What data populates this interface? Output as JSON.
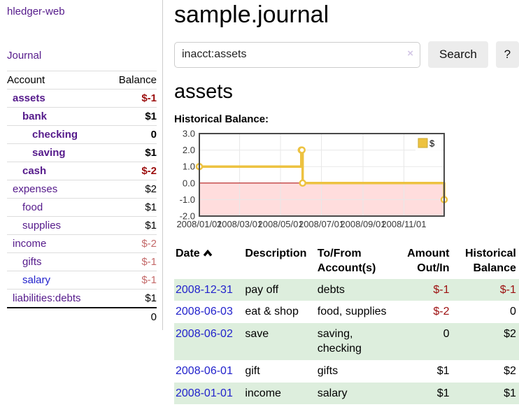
{
  "app": {
    "brand": "hledger-web",
    "nav": {
      "journal": "Journal"
    }
  },
  "sidebar": {
    "header": {
      "account": "Account",
      "balance": "Balance"
    },
    "accounts": [
      {
        "name": "assets",
        "balance": "$-1",
        "indent": 1,
        "bold": true,
        "name_color": "purple",
        "balance_class": "neg-strong"
      },
      {
        "name": "bank",
        "balance": "$1",
        "indent": 2,
        "bold": true,
        "name_color": "purple",
        "balance_class": ""
      },
      {
        "name": "checking",
        "balance": "0",
        "indent": 3,
        "bold": true,
        "name_color": "purple",
        "balance_class": ""
      },
      {
        "name": "saving",
        "balance": "$1",
        "indent": 3,
        "bold": true,
        "name_color": "purple",
        "balance_class": ""
      },
      {
        "name": "cash",
        "balance": "$-2",
        "indent": 2,
        "bold": true,
        "name_color": "purple",
        "balance_class": "neg-strong"
      },
      {
        "name": "expenses",
        "balance": "$2",
        "indent": 1,
        "bold": false,
        "name_color": "purple",
        "balance_class": ""
      },
      {
        "name": "food",
        "balance": "$1",
        "indent": 2,
        "bold": false,
        "name_color": "purple",
        "balance_class": ""
      },
      {
        "name": "supplies",
        "balance": "$1",
        "indent": 2,
        "bold": false,
        "name_color": "purple",
        "balance_class": ""
      },
      {
        "name": "income",
        "balance": "$-2",
        "indent": 1,
        "bold": false,
        "name_color": "purple",
        "balance_class": "neg-muted"
      },
      {
        "name": "gifts",
        "balance": "$-1",
        "indent": 2,
        "bold": false,
        "name_color": "purple",
        "balance_class": "neg-muted"
      },
      {
        "name": "salary",
        "balance": "$-1",
        "indent": 2,
        "bold": false,
        "name_color": "blue",
        "balance_class": "neg-muted"
      },
      {
        "name": "liabilities:debts",
        "balance": "$1",
        "indent": 1,
        "bold": false,
        "name_color": "purple",
        "balance_class": ""
      }
    ],
    "total": "0"
  },
  "main": {
    "title": "sample.journal",
    "search": {
      "value": "inacct:assets",
      "clear_icon": "×",
      "search_button": "Search",
      "help_button": "?"
    },
    "account_heading": "assets",
    "chart_heading": "Historical Balance:"
  },
  "chart_data": {
    "type": "line",
    "steps": true,
    "title": "Historical Balance",
    "series": [
      {
        "name": "$",
        "color": "#edc240",
        "points": [
          {
            "date": "2008-01-01",
            "day": 0,
            "value": 1
          },
          {
            "date": "2008-06-01",
            "day": 152,
            "value": 2
          },
          {
            "date": "2008-06-02",
            "day": 153,
            "value": 2
          },
          {
            "date": "2008-06-03",
            "day": 154,
            "value": 0
          },
          {
            "date": "2008-12-31",
            "day": 365,
            "value": -1
          }
        ]
      }
    ],
    "x_ticks": [
      {
        "day": 0,
        "label": "2008/01/01"
      },
      {
        "day": 60,
        "label": "2008/03/01"
      },
      {
        "day": 121,
        "label": "2008/05/01"
      },
      {
        "day": 182,
        "label": "2008/07/01"
      },
      {
        "day": 244,
        "label": "2008/09/01"
      },
      {
        "day": 305,
        "label": "2008/11/01"
      }
    ],
    "y_ticks": [
      {
        "value": 3,
        "label": "3.0"
      },
      {
        "value": 2,
        "label": "2.0"
      },
      {
        "value": 1,
        "label": "1.0"
      },
      {
        "value": 0,
        "label": "0.0"
      },
      {
        "value": -1,
        "label": "-1.0"
      },
      {
        "value": -2,
        "label": "-2.0"
      }
    ],
    "ylim": [
      -2,
      3
    ],
    "x_range_days": [
      0,
      365
    ],
    "grid": true,
    "legend": {
      "label": "$",
      "position": "top-right"
    },
    "negative_region_fill": "#ffdddd",
    "zero_line_color": "#aa0000",
    "grid_color": "#e8e8e8",
    "border_color": "#4a4a4a",
    "tick_label_color": "#383838"
  },
  "register": {
    "columns": [
      {
        "label": "Date"
      },
      {
        "label": "Description"
      },
      {
        "label": "To/From Account(s)"
      },
      {
        "label": "Amount Out/In"
      },
      {
        "label": "Historical Balance"
      }
    ],
    "sort_icon": "chevron-up",
    "rows": [
      {
        "date": "2008-12-31",
        "description": "pay off",
        "accounts": "debts",
        "amount": "$-1",
        "amount_negative": true,
        "balance": "$-1",
        "balance_negative": true
      },
      {
        "date": "2008-06-03",
        "description": "eat & shop",
        "accounts": "food, supplies",
        "amount": "$-2",
        "amount_negative": true,
        "balance": "0",
        "balance_negative": false
      },
      {
        "date": "2008-06-02",
        "description": "save",
        "accounts": "saving, checking",
        "amount": "0",
        "amount_negative": false,
        "balance": "$2",
        "balance_negative": false
      },
      {
        "date": "2008-06-01",
        "description": "gift",
        "accounts": "gifts",
        "amount": "$1",
        "amount_negative": false,
        "balance": "$2",
        "balance_negative": false
      },
      {
        "date": "2008-01-01",
        "description": "income",
        "accounts": "salary",
        "amount": "$1",
        "amount_negative": false,
        "balance": "$1",
        "balance_negative": false
      }
    ]
  },
  "colors": {
    "link_purple": "#551a8b",
    "link_blue": "#2222cc",
    "negative_strong": "#9c0f0f",
    "negative_muted": "#c46a6a",
    "row_stripe_green": "#ddeedd",
    "button_bg": "#ececec",
    "divider": "#cccccc"
  }
}
